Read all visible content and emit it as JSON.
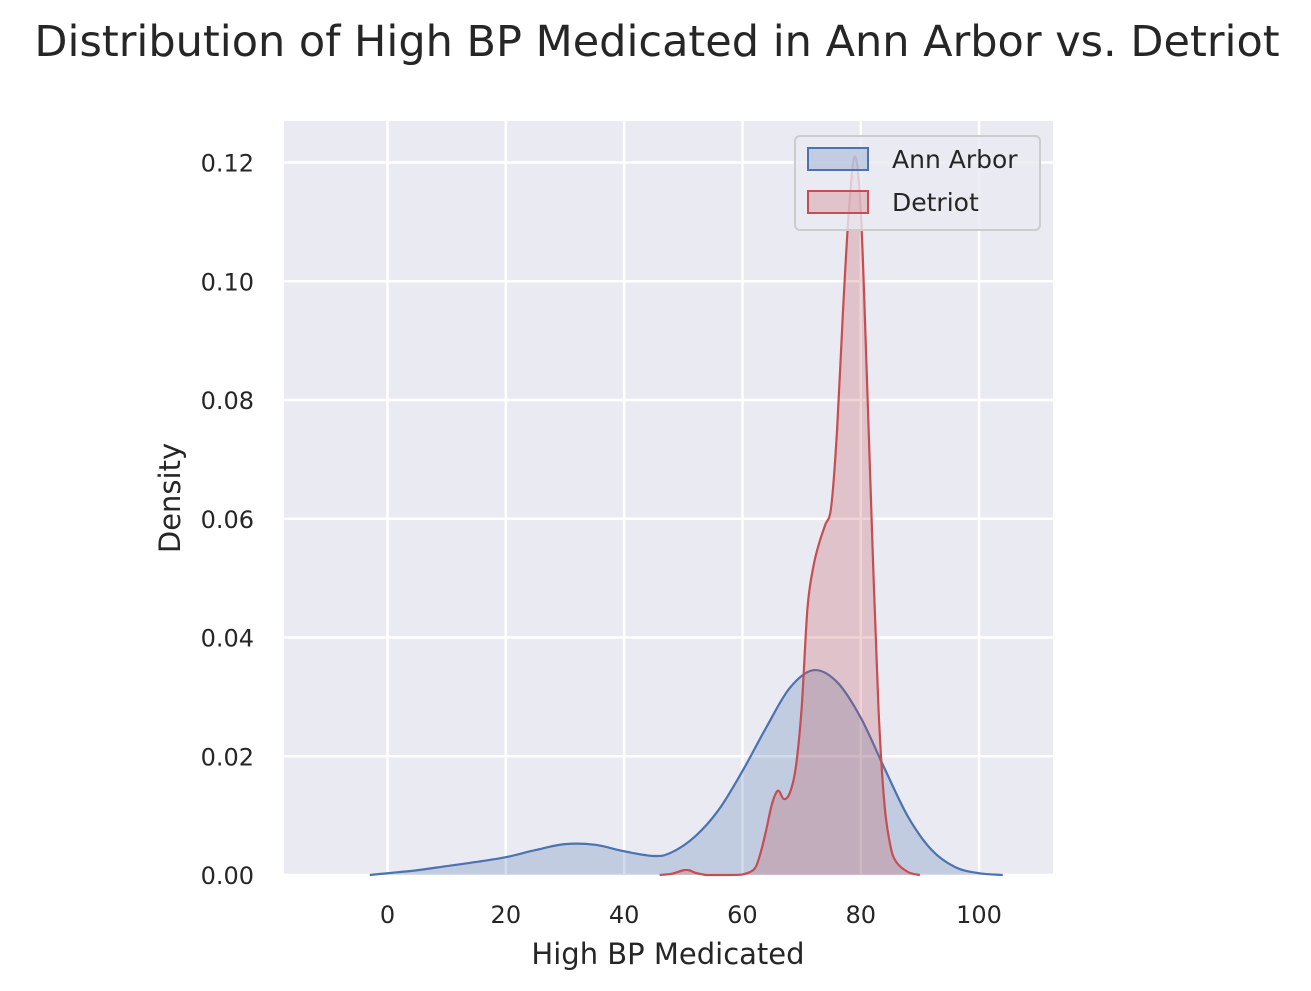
{
  "chart_data": {
    "type": "area",
    "title": "Distribution of High BP Medicated in Ann Arbor vs. Detriot",
    "xlabel": "High BP Medicated",
    "ylabel": "Density",
    "xlim": [
      -17.5,
      112.5
    ],
    "ylim": [
      0,
      0.127
    ],
    "xticks": [
      0,
      20,
      40,
      60,
      80,
      100
    ],
    "yticks": [
      0.0,
      0.02,
      0.04,
      0.06,
      0.08,
      0.1,
      0.12
    ],
    "ytick_labels": [
      "0.00",
      "0.02",
      "0.04",
      "0.06",
      "0.08",
      "0.10",
      "0.12"
    ],
    "grid": true,
    "legend": "top-right",
    "series": [
      {
        "name": "Ann Arbor",
        "line_color": "#4c72b0",
        "fill_color": "#4c72b0",
        "x": [
          -3,
          0,
          5,
          10,
          15,
          20,
          25,
          30,
          35,
          40,
          45,
          48,
          52,
          56,
          60,
          64,
          68,
          72,
          76,
          80,
          84,
          88,
          92,
          96,
          100,
          104
        ],
        "y": [
          0.0,
          0.0003,
          0.0008,
          0.0015,
          0.0022,
          0.003,
          0.0042,
          0.0052,
          0.0051,
          0.004,
          0.0032,
          0.0038,
          0.0065,
          0.011,
          0.0175,
          0.0248,
          0.0315,
          0.0345,
          0.0325,
          0.0265,
          0.018,
          0.0098,
          0.0042,
          0.0013,
          0.0003,
          0.0
        ]
      },
      {
        "name": "Detriot",
        "line_color": "#c44e52",
        "fill_color": "#c44e52",
        "x": [
          46,
          48,
          50,
          51,
          52,
          54,
          56,
          58,
          60,
          62,
          63,
          64,
          65,
          66,
          67,
          68,
          69,
          70,
          71,
          72,
          73,
          74,
          75,
          76,
          77,
          78,
          79,
          80,
          81,
          82,
          83,
          84,
          85,
          86,
          88,
          90
        ],
        "y": [
          0.0,
          0.0002,
          0.0008,
          0.0008,
          0.0004,
          0.0,
          0.0,
          0.0,
          0.0001,
          0.001,
          0.0035,
          0.0075,
          0.012,
          0.0142,
          0.0128,
          0.0138,
          0.018,
          0.028,
          0.045,
          0.052,
          0.056,
          0.059,
          0.062,
          0.075,
          0.095,
          0.112,
          0.121,
          0.112,
          0.085,
          0.055,
          0.028,
          0.012,
          0.005,
          0.0022,
          0.0005,
          0.0
        ]
      }
    ]
  },
  "colors": {
    "plot_background": "#eaeaf2",
    "grid": "#ffffff",
    "text": "#262626"
  }
}
